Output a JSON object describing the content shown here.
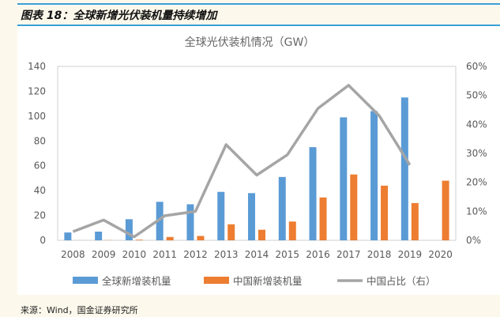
{
  "figure_title": "图表 18：全球新增光伏装机量持续增加",
  "source": "来源：Wind，国金证券研究所",
  "chart_data": {
    "type": "bar+line",
    "title": "全球光伏装机情况（GW）",
    "categories": [
      "2008",
      "2009",
      "2010",
      "2011",
      "2012",
      "2013",
      "2014",
      "2015",
      "2016",
      "2017",
      "2018",
      "2019",
      "2020"
    ],
    "series": [
      {
        "name": "全球新增装机量",
        "type": "bar",
        "axis": "left",
        "color": "#5b9bd5",
        "values": [
          6.3,
          7,
          17,
          31,
          29,
          39,
          38,
          51,
          75,
          99,
          104,
          115,
          null
        ]
      },
      {
        "name": "中国新增装机量",
        "type": "bar",
        "axis": "left",
        "color": "#ed7d31",
        "values": [
          0.05,
          0.16,
          0.5,
          2.7,
          3.5,
          12.9,
          8.5,
          15.1,
          34.5,
          53,
          44,
          30,
          48
        ]
      },
      {
        "name": "中国占比（右）",
        "type": "line",
        "axis": "right",
        "color": "#a5a5a5",
        "values": [
          0.03,
          0.07,
          0.012,
          0.085,
          0.1,
          0.33,
          0.225,
          0.295,
          0.455,
          0.535,
          0.43,
          0.26,
          null
        ]
      }
    ],
    "y_left": {
      "range": [
        0,
        140
      ],
      "ticks": [
        "0",
        "20",
        "40",
        "60",
        "80",
        "100",
        "120",
        "140"
      ]
    },
    "y_right": {
      "range": [
        0,
        0.6
      ],
      "ticks": [
        "0%",
        "10%",
        "20%",
        "30%",
        "40%",
        "50%",
        "60%"
      ]
    },
    "grid": false,
    "legend": "bottom"
  }
}
